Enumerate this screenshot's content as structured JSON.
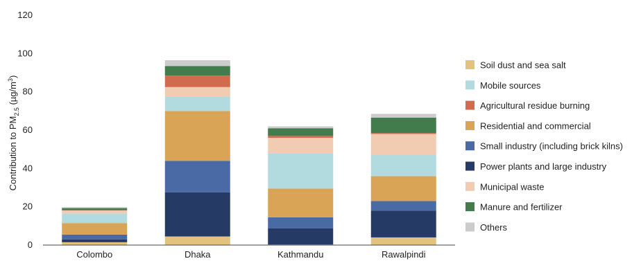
{
  "chart_data": {
    "type": "bar",
    "stacked": true,
    "title": "",
    "xlabel": "",
    "ylabel": "Contribution to PM",
    "ylabel_sub": "2.5",
    "ylabel_unit_prefix": " (µg/m",
    "ylabel_unit_sup": "3",
    "ylabel_unit_suffix": ")",
    "ylim": [
      0,
      120
    ],
    "yticks": [
      "0",
      "20",
      "40",
      "60",
      "80",
      "100",
      "120"
    ],
    "grid": false,
    "legend_position": "right",
    "categories": [
      "Colombo",
      "Dhaka",
      "Kathmandu",
      "Rawalpindi"
    ],
    "series": [
      {
        "name": "Soil dust and sea salt",
        "color": "#e2c27d",
        "values": [
          1.5,
          4.5,
          0.3,
          4.0
        ]
      },
      {
        "name": "Power plants and large industry",
        "color": "#263a66",
        "values": [
          1.5,
          23.0,
          8.5,
          14.0
        ]
      },
      {
        "name": "Small industry (including brick kilns)",
        "color": "#4a6aa5",
        "values": [
          2.5,
          16.5,
          5.7,
          5.0
        ]
      },
      {
        "name": "Residential and commercial",
        "color": "#d9a456",
        "values": [
          6.0,
          26.0,
          15.0,
          13.0
        ]
      },
      {
        "name": "Mobile sources",
        "color": "#b2dbe0",
        "values": [
          5.0,
          7.5,
          18.5,
          11.0
        ]
      },
      {
        "name": "Municipal waste",
        "color": "#f1cbb2",
        "values": [
          1.5,
          5.0,
          8.0,
          11.0
        ]
      },
      {
        "name": "Agricultural residue burning",
        "color": "#d26b4e",
        "values": [
          0.3,
          6.0,
          1.0,
          0.5
        ]
      },
      {
        "name": "Manure and fertilizer",
        "color": "#437c4c",
        "values": [
          1.0,
          5.0,
          4.0,
          8.0
        ]
      },
      {
        "name": "Others",
        "color": "#cccccc",
        "values": [
          0.5,
          3.0,
          1.0,
          2.0
        ]
      }
    ],
    "legend_order": [
      "Soil dust and sea salt",
      "Mobile sources",
      "Agricultural residue burning",
      "Residential and commercial",
      "Small industry (including brick kilns)",
      "Power plants and large industry",
      "Municipal waste",
      "Manure and fertilizer",
      "Others"
    ]
  }
}
